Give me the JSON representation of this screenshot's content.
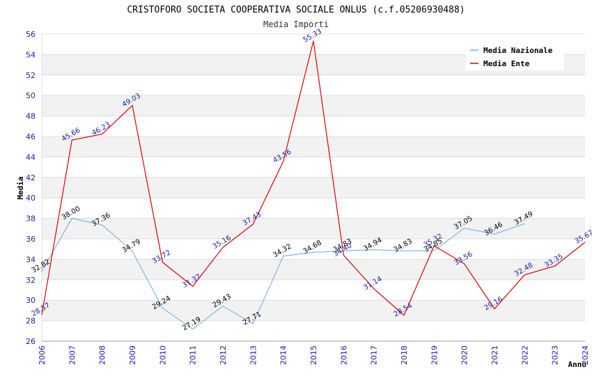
{
  "chart_data": {
    "type": "line",
    "title": "CRISTOFORO SOCIETA COOPERATIVA SOCIALE ONLUS (c.f.05206930488)",
    "subtitle": "Media Importi",
    "xlabel": "Anno",
    "ylabel": "Media",
    "ylim": [
      26,
      56
    ],
    "yticks": [
      "26",
      "28",
      "30",
      "32",
      "34",
      "36",
      "38",
      "40",
      "42",
      "44",
      "46",
      "48",
      "50",
      "52",
      "54",
      "56"
    ],
    "categories": [
      "2006",
      "2007",
      "2008",
      "2009",
      "2010",
      "2011",
      "2012",
      "2013",
      "2014",
      "2015",
      "2016",
      "2017",
      "2018",
      "2019",
      "2020",
      "2021",
      "2022",
      "2023",
      "2024"
    ],
    "grid": true,
    "legend_position": "top-right",
    "series": [
      {
        "name": "Media Nazionale",
        "color": "#6aaae4",
        "values": [
          32.82,
          38.0,
          37.36,
          34.79,
          29.24,
          27.19,
          29.43,
          27.71,
          34.32,
          34.68,
          34.83,
          34.94,
          34.83,
          34.85,
          37.05,
          36.46,
          37.49,
          null,
          null
        ],
        "labels": [
          "32.82",
          "38.00",
          "37.36",
          "34.79",
          "29.24",
          "27.19",
          "29.43",
          "27.71",
          "34.32",
          "34.68",
          "34.83",
          "34.94",
          "34.83",
          "34.85",
          "37.05",
          "36.46",
          "37.49",
          null,
          null
        ]
      },
      {
        "name": "Media Ente",
        "color": "#e00000",
        "values": [
          28.57,
          45.66,
          46.23,
          49.03,
          33.72,
          31.37,
          35.16,
          37.43,
          43.56,
          55.33,
          34.4,
          31.14,
          28.54,
          35.32,
          33.56,
          29.16,
          32.48,
          33.35,
          35.67
        ],
        "labels": [
          "28.57",
          "45.66",
          "46.23",
          "49.03",
          "33.72",
          "31.37",
          "35.16",
          "37.43",
          "43.56",
          "55.33",
          "34.40",
          "31.14",
          "28.54",
          "35.32",
          "33.56",
          "29.16",
          "32.48",
          "33.35",
          "35.67"
        ]
      }
    ]
  }
}
